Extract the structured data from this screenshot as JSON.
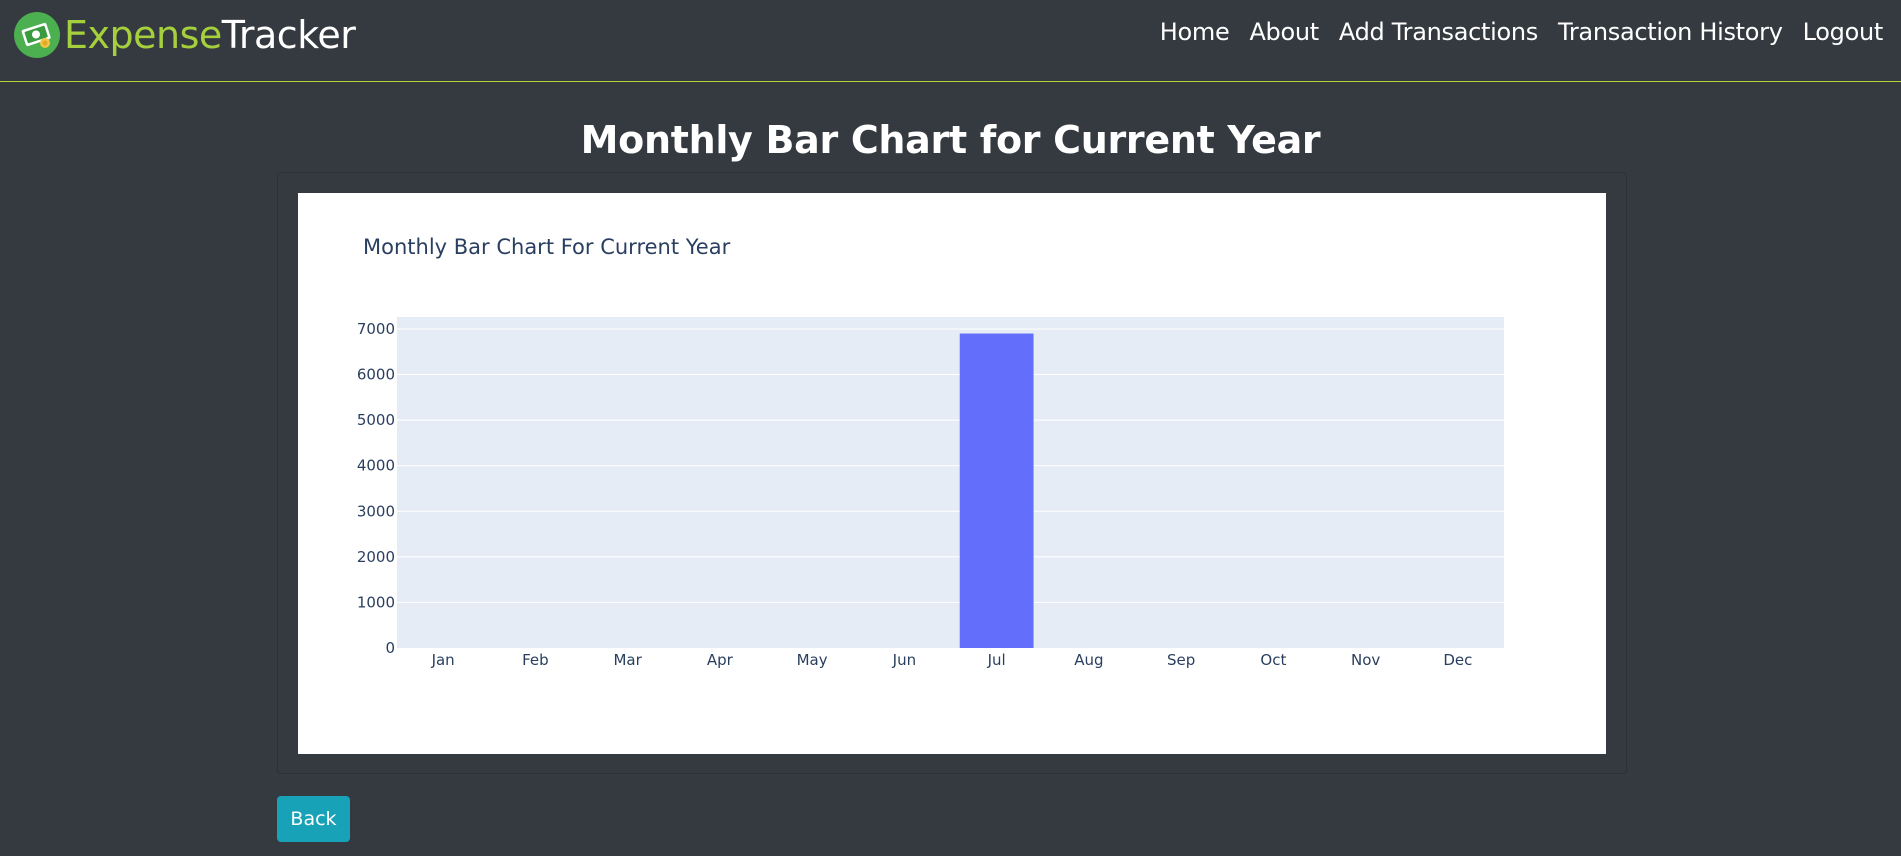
{
  "brand": {
    "part1": "Expense",
    "part2": "Tracker",
    "logo_icon": "money-bill-icon"
  },
  "nav": {
    "items": [
      {
        "label": "Home"
      },
      {
        "label": "About"
      },
      {
        "label": "Add Transactions"
      },
      {
        "label": "Transaction History"
      },
      {
        "label": "Logout"
      }
    ]
  },
  "page": {
    "title": "Monthly Bar Chart for Current Year"
  },
  "chart_data": {
    "type": "bar",
    "title": "Monthly Bar Chart For Current Year",
    "xlabel": "",
    "ylabel": "",
    "categories": [
      "Jan",
      "Feb",
      "Mar",
      "Apr",
      "May",
      "Jun",
      "Jul",
      "Aug",
      "Sep",
      "Oct",
      "Nov",
      "Dec"
    ],
    "values": [
      0,
      0,
      0,
      0,
      0,
      0,
      6900,
      0,
      0,
      0,
      0,
      0
    ],
    "yticks": [
      0,
      1000,
      2000,
      3000,
      4000,
      5000,
      6000,
      7000
    ],
    "ylim": [
      0,
      7263
    ],
    "grid": true,
    "bar_color": "#636efa",
    "plot_bg": "#e5ecf6"
  },
  "back": {
    "label": "Back"
  },
  "colors": {
    "background": "#343a40",
    "accent": "#a6cf3d",
    "button": "#17a2b8"
  }
}
